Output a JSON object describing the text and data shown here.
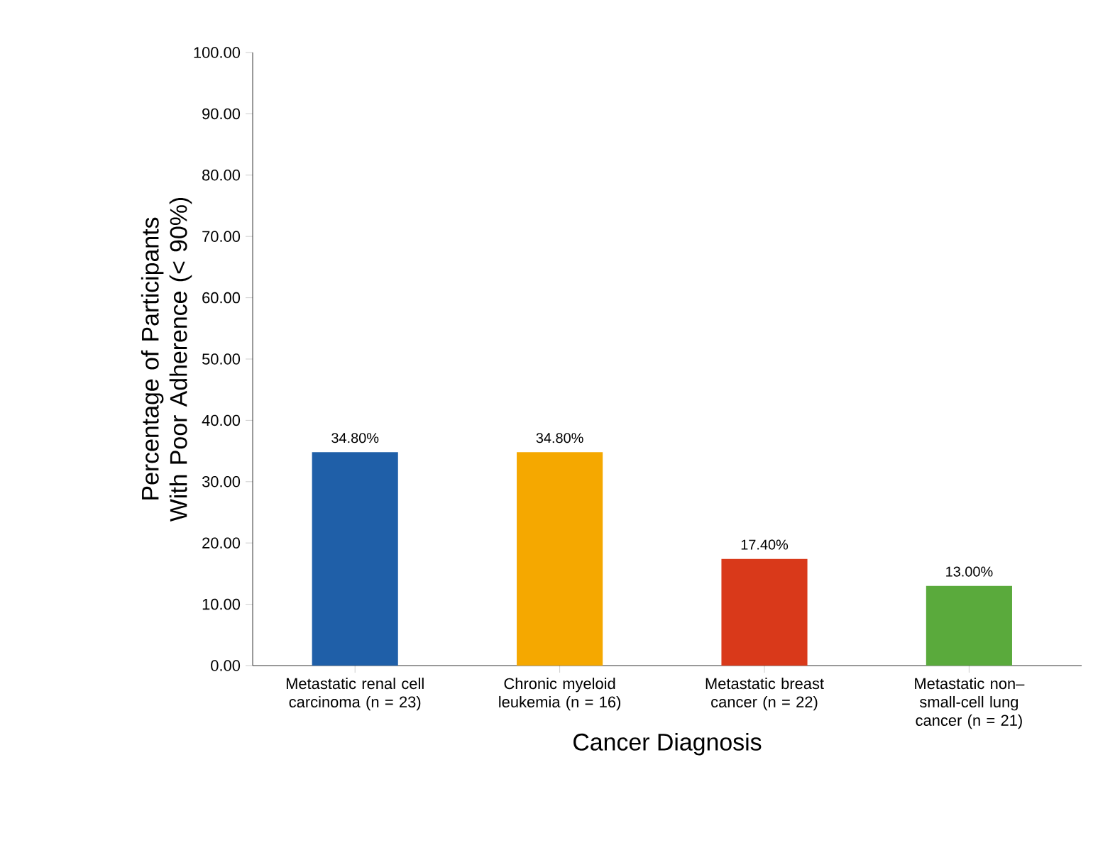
{
  "chart_data": {
    "type": "bar",
    "xlabel": "Cancer Diagnosis",
    "ylabel": "Percentage of Participants With Poor Adherence (< 90%)",
    "categories": [
      "Metastatic renal cell carcinoma (n = 23)",
      "Chronic myeloid leukemia (n = 16)",
      "Metastatic breast cancer (n = 22)",
      "Metastatic non–small-cell lung cancer (n = 21)"
    ],
    "values": [
      34.8,
      34.8,
      17.4,
      13.0
    ],
    "value_labels": [
      "34.80%",
      "34.80%",
      "17.40%",
      "13.00%"
    ],
    "colors": [
      "#1f5fa8",
      "#f5a800",
      "#d9391a",
      "#5aaa3c"
    ],
    "ylim": [
      0,
      100
    ],
    "yticks": [
      {
        "value": 0,
        "label": "0.00"
      },
      {
        "value": 10,
        "label": "10.00"
      },
      {
        "value": 20,
        "label": "20.00"
      },
      {
        "value": 30,
        "label": "30.00"
      },
      {
        "value": 40,
        "label": "40.00"
      },
      {
        "value": 50,
        "label": "50.00"
      },
      {
        "value": 60,
        "label": "60.00"
      },
      {
        "value": 70,
        "label": "70.00"
      },
      {
        "value": 80,
        "label": "80.00"
      },
      {
        "value": 90,
        "label": "90.00"
      },
      {
        "value": 100,
        "label": "100.00"
      }
    ],
    "grid": false
  }
}
